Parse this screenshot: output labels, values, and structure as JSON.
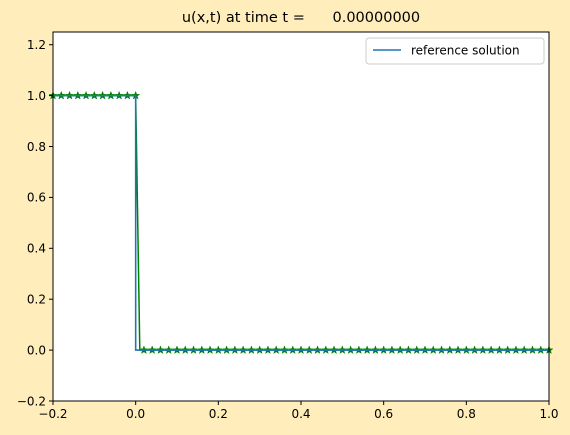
{
  "chart_data": {
    "type": "line",
    "title": "u(x,t) at time t =      0.00000000",
    "xlabel": "",
    "ylabel": "",
    "xlim": [
      -0.2,
      1.0
    ],
    "ylim": [
      -0.2,
      1.25
    ],
    "x_ticks": [
      -0.2,
      0.0,
      0.2,
      0.4,
      0.6,
      0.8,
      1.0
    ],
    "x_tick_labels": [
      "−0.2",
      "0.0",
      "0.2",
      "0.4",
      "0.6",
      "0.8",
      "1.0"
    ],
    "y_ticks": [
      -0.2,
      0.0,
      0.2,
      0.4,
      0.6,
      0.8,
      1.0,
      1.2
    ],
    "y_tick_labels": [
      "−0.2",
      "0.0",
      "0.2",
      "0.4",
      "0.6",
      "0.8",
      "1.0",
      "1.2"
    ],
    "grid": false,
    "legend_position": "top-right",
    "series": [
      {
        "name": "reference solution",
        "color": "#1f77b4",
        "style": "line",
        "x": [
          -0.2,
          0.0,
          0.0,
          1.0
        ],
        "y": [
          1.0,
          1.0,
          0.0,
          0.0
        ]
      },
      {
        "color": "#008000",
        "style": "line-with-star-markers",
        "marker": "star",
        "x_start": -0.2,
        "x_end": 1.0,
        "step": 0.01,
        "y_left": 1.0,
        "y_right": 0.0,
        "jump_between": [
          -0.01,
          0.01
        ]
      }
    ]
  },
  "figure": {
    "background": "#ffeebb",
    "axes_background": "#ffffff"
  }
}
